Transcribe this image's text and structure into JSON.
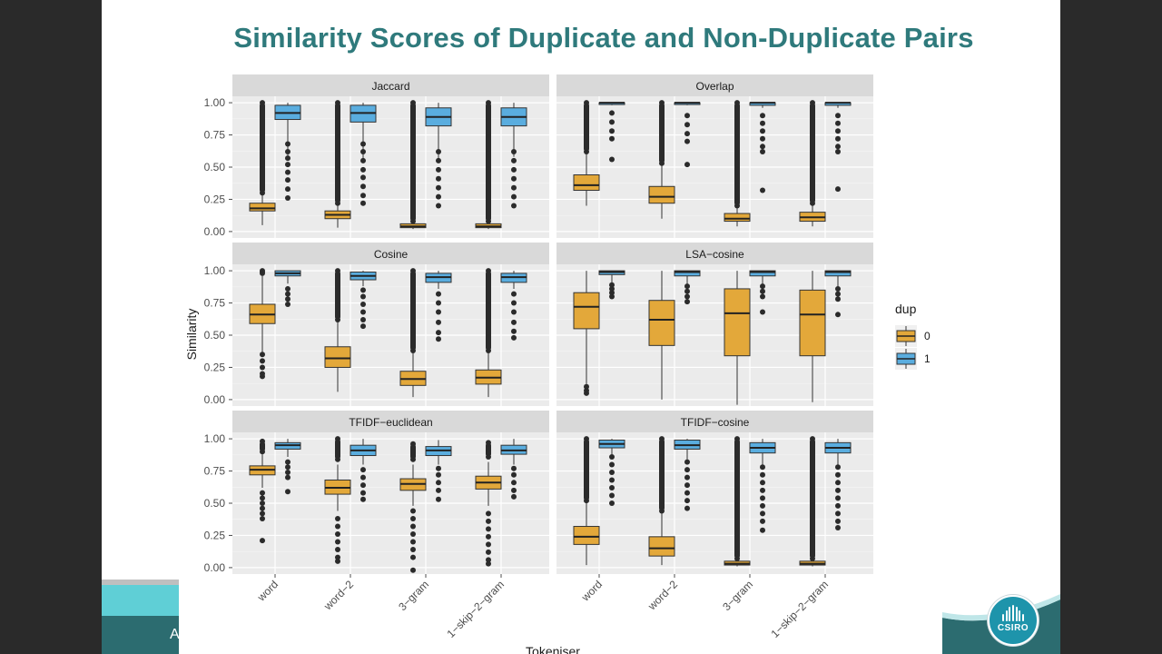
{
  "slide": {
    "title": "Similarity Scores of Duplicate and Non-Duplicate Pairs",
    "left_footer_text": "A",
    "logo_text": "CSIRO",
    "colors": {
      "title": "#2f7a7c",
      "dup0": "#e3a83a",
      "dup1": "#5aaddf",
      "panel": "#ebebeb",
      "strip": "#d9d9d9",
      "teal_light": "#5fcfd6",
      "teal_dark": "#2c6c70",
      "logo": "#1e94ab"
    },
    "icons": [
      "csiro-logo-icon"
    ]
  },
  "chart_data": {
    "type": "boxplot",
    "xlabel": "Tokeniser",
    "ylabel": "Similarity",
    "categories": [
      "word",
      "word−2",
      "3−gram",
      "1−skip−2−gram"
    ],
    "ylim": [
      -0.05,
      1.05
    ],
    "yticks": [
      "0.00",
      "0.25",
      "0.50",
      "0.75",
      "1.00"
    ],
    "legend": {
      "title": "dup",
      "entries": [
        "0",
        "1"
      ],
      "position": "right"
    },
    "grid": true,
    "panels": [
      {
        "name": "Jaccard",
        "boxes": [
          {
            "cat": "word",
            "dup": "0",
            "min": 0.05,
            "q1": 0.16,
            "median": 0.18,
            "q3": 0.22,
            "max": 0.3,
            "out_low": [],
            "out_high": [
              0.3,
              1.0
            ]
          },
          {
            "cat": "word",
            "dup": "1",
            "min": 0.58,
            "q1": 0.87,
            "median": 0.92,
            "q3": 0.98,
            "max": 1.0,
            "out_low": [
              0.26,
              0.33,
              0.4,
              0.46,
              0.52,
              0.57,
              0.62,
              0.68
            ],
            "out_high": []
          },
          {
            "cat": "word−2",
            "dup": "0",
            "min": 0.03,
            "q1": 0.1,
            "median": 0.13,
            "q3": 0.16,
            "max": 0.22,
            "out_low": [],
            "out_high": [
              0.22,
              1.0
            ]
          },
          {
            "cat": "word−2",
            "dup": "1",
            "min": 0.55,
            "q1": 0.85,
            "median": 0.92,
            "q3": 0.98,
            "max": 1.0,
            "out_low": [
              0.22,
              0.28,
              0.35,
              0.42,
              0.48,
              0.55,
              0.62,
              0.68
            ],
            "out_high": []
          },
          {
            "cat": "3−gram",
            "dup": "0",
            "min": 0.02,
            "q1": 0.03,
            "median": 0.04,
            "q3": 0.06,
            "max": 0.08,
            "out_low": [],
            "out_high": [
              0.08,
              1.0
            ]
          },
          {
            "cat": "3−gram",
            "dup": "1",
            "min": 0.55,
            "q1": 0.82,
            "median": 0.89,
            "q3": 0.96,
            "max": 1.0,
            "out_low": [
              0.2,
              0.27,
              0.34,
              0.41,
              0.48,
              0.55,
              0.62
            ],
            "out_high": []
          },
          {
            "cat": "1−skip−2−gram",
            "dup": "0",
            "min": 0.02,
            "q1": 0.03,
            "median": 0.04,
            "q3": 0.06,
            "max": 0.08,
            "out_low": [],
            "out_high": [
              0.08,
              1.0
            ]
          },
          {
            "cat": "1−skip−2−gram",
            "dup": "1",
            "min": 0.58,
            "q1": 0.82,
            "median": 0.89,
            "q3": 0.96,
            "max": 1.0,
            "out_low": [
              0.2,
              0.27,
              0.34,
              0.41,
              0.48,
              0.55,
              0.62
            ],
            "out_high": []
          }
        ]
      },
      {
        "name": "Overlap",
        "boxes": [
          {
            "cat": "word",
            "dup": "0",
            "min": 0.2,
            "q1": 0.32,
            "median": 0.36,
            "q3": 0.44,
            "max": 0.62,
            "out_low": [],
            "out_high": [
              0.62,
              1.0
            ]
          },
          {
            "cat": "word",
            "dup": "1",
            "min": 0.98,
            "q1": 0.99,
            "median": 1.0,
            "q3": 1.0,
            "max": 1.0,
            "out_low": [
              0.56,
              0.72,
              0.78,
              0.85,
              0.92
            ],
            "out_high": []
          },
          {
            "cat": "word−2",
            "dup": "0",
            "min": 0.1,
            "q1": 0.22,
            "median": 0.27,
            "q3": 0.35,
            "max": 0.53,
            "out_low": [],
            "out_high": [
              0.53,
              1.0
            ]
          },
          {
            "cat": "word−2",
            "dup": "1",
            "min": 0.98,
            "q1": 0.99,
            "median": 1.0,
            "q3": 1.0,
            "max": 1.0,
            "out_low": [
              0.52,
              0.7,
              0.76,
              0.83,
              0.9
            ],
            "out_high": []
          },
          {
            "cat": "3−gram",
            "dup": "0",
            "min": 0.04,
            "q1": 0.08,
            "median": 0.1,
            "q3": 0.14,
            "max": 0.2,
            "out_low": [],
            "out_high": [
              0.2,
              1.0
            ]
          },
          {
            "cat": "3−gram",
            "dup": "1",
            "min": 0.96,
            "q1": 0.98,
            "median": 1.0,
            "q3": 1.0,
            "max": 1.0,
            "out_low": [
              0.32,
              0.62,
              0.66,
              0.72,
              0.78,
              0.84,
              0.9
            ],
            "out_high": []
          },
          {
            "cat": "1−skip−2−gram",
            "dup": "0",
            "min": 0.04,
            "q1": 0.08,
            "median": 0.11,
            "q3": 0.15,
            "max": 0.22,
            "out_low": [],
            "out_high": [
              0.22,
              1.0
            ]
          },
          {
            "cat": "1−skip−2−gram",
            "dup": "1",
            "min": 0.96,
            "q1": 0.98,
            "median": 1.0,
            "q3": 1.0,
            "max": 1.0,
            "out_low": [
              0.33,
              0.62,
              0.66,
              0.72,
              0.78,
              0.84,
              0.9
            ],
            "out_high": []
          }
        ]
      },
      {
        "name": "Cosine",
        "boxes": [
          {
            "cat": "word",
            "dup": "0",
            "min": 0.36,
            "q1": 0.59,
            "median": 0.66,
            "q3": 0.74,
            "max": 0.96,
            "out_low": [
              0.18,
              0.2,
              0.25,
              0.3,
              0.35
            ],
            "out_high": [
              0.98,
              1.0
            ]
          },
          {
            "cat": "word",
            "dup": "1",
            "min": 0.9,
            "q1": 0.96,
            "median": 0.98,
            "q3": 1.0,
            "max": 1.0,
            "out_low": [
              0.74,
              0.78,
              0.82,
              0.86
            ],
            "out_high": []
          },
          {
            "cat": "word−2",
            "dup": "0",
            "min": 0.06,
            "q1": 0.25,
            "median": 0.32,
            "q3": 0.41,
            "max": 0.62,
            "out_low": [],
            "out_high": [
              0.62,
              1.0
            ]
          },
          {
            "cat": "word−2",
            "dup": "1",
            "min": 0.88,
            "q1": 0.93,
            "median": 0.96,
            "q3": 0.99,
            "max": 1.0,
            "out_low": [
              0.57,
              0.62,
              0.68,
              0.74,
              0.8,
              0.85
            ],
            "out_high": []
          },
          {
            "cat": "3−gram",
            "dup": "0",
            "min": 0.02,
            "q1": 0.11,
            "median": 0.16,
            "q3": 0.22,
            "max": 0.38,
            "out_low": [],
            "out_high": [
              0.38,
              1.0
            ]
          },
          {
            "cat": "3−gram",
            "dup": "1",
            "min": 0.86,
            "q1": 0.91,
            "median": 0.95,
            "q3": 0.98,
            "max": 1.0,
            "out_low": [
              0.47,
              0.52,
              0.6,
              0.68,
              0.75,
              0.82
            ],
            "out_high": []
          },
          {
            "cat": "1−skip−2−gram",
            "dup": "0",
            "min": 0.02,
            "q1": 0.12,
            "median": 0.17,
            "q3": 0.23,
            "max": 0.38,
            "out_low": [],
            "out_high": [
              0.38,
              1.0
            ]
          },
          {
            "cat": "1−skip−2−gram",
            "dup": "1",
            "min": 0.86,
            "q1": 0.91,
            "median": 0.95,
            "q3": 0.98,
            "max": 1.0,
            "out_low": [
              0.48,
              0.53,
              0.6,
              0.68,
              0.75,
              0.82
            ],
            "out_high": []
          }
        ]
      },
      {
        "name": "LSA−cosine",
        "boxes": [
          {
            "cat": "word",
            "dup": "0",
            "min": 0.12,
            "q1": 0.55,
            "median": 0.72,
            "q3": 0.83,
            "max": 1.0,
            "out_low": [
              0.05,
              0.07,
              0.1
            ],
            "out_high": []
          },
          {
            "cat": "word",
            "dup": "1",
            "min": 0.9,
            "q1": 0.97,
            "median": 0.99,
            "q3": 1.0,
            "max": 1.0,
            "out_low": [
              0.8,
              0.83,
              0.86,
              0.89
            ],
            "out_high": []
          },
          {
            "cat": "word−2",
            "dup": "0",
            "min": 0.0,
            "q1": 0.42,
            "median": 0.62,
            "q3": 0.77,
            "max": 1.0,
            "out_low": [],
            "out_high": []
          },
          {
            "cat": "word−2",
            "dup": "1",
            "min": 0.88,
            "q1": 0.96,
            "median": 0.99,
            "q3": 1.0,
            "max": 1.0,
            "out_low": [
              0.76,
              0.8,
              0.84,
              0.88
            ],
            "out_high": []
          },
          {
            "cat": "3−gram",
            "dup": "0",
            "min": -0.04,
            "q1": 0.34,
            "median": 0.67,
            "q3": 0.86,
            "max": 1.0,
            "out_low": [],
            "out_high": []
          },
          {
            "cat": "3−gram",
            "dup": "1",
            "min": 0.88,
            "q1": 0.96,
            "median": 0.99,
            "q3": 1.0,
            "max": 1.0,
            "out_low": [
              0.68,
              0.8,
              0.84,
              0.88
            ],
            "out_high": []
          },
          {
            "cat": "1−skip−2−gram",
            "dup": "0",
            "min": -0.02,
            "q1": 0.34,
            "median": 0.66,
            "q3": 0.85,
            "max": 1.0,
            "out_low": [],
            "out_high": []
          },
          {
            "cat": "1−skip−2−gram",
            "dup": "1",
            "min": 0.88,
            "q1": 0.96,
            "median": 0.99,
            "q3": 1.0,
            "max": 1.0,
            "out_low": [
              0.66,
              0.78,
              0.82,
              0.86
            ],
            "out_high": []
          }
        ]
      },
      {
        "name": "TFIDF−euclidean",
        "boxes": [
          {
            "cat": "word",
            "dup": "0",
            "min": 0.62,
            "q1": 0.72,
            "median": 0.76,
            "q3": 0.79,
            "max": 0.88,
            "out_low": [
              0.21,
              0.38,
              0.42,
              0.46,
              0.5,
              0.54,
              0.58
            ],
            "out_high": [
              0.9,
              0.94,
              0.98
            ]
          },
          {
            "cat": "word",
            "dup": "1",
            "min": 0.86,
            "q1": 0.92,
            "median": 0.95,
            "q3": 0.97,
            "max": 1.0,
            "out_low": [
              0.59,
              0.7,
              0.74,
              0.78,
              0.82
            ],
            "out_high": []
          },
          {
            "cat": "word−2",
            "dup": "0",
            "min": 0.44,
            "q1": 0.57,
            "median": 0.62,
            "q3": 0.68,
            "max": 0.8,
            "out_low": [
              0.05,
              0.08,
              0.14,
              0.2,
              0.26,
              0.32,
              0.38
            ],
            "out_high": [
              0.84,
              0.9,
              0.96,
              1.0
            ]
          },
          {
            "cat": "word−2",
            "dup": "1",
            "min": 0.8,
            "q1": 0.87,
            "median": 0.91,
            "q3": 0.95,
            "max": 1.0,
            "out_low": [
              0.53,
              0.58,
              0.64,
              0.7,
              0.76
            ],
            "out_high": []
          },
          {
            "cat": "3−gram",
            "dup": "0",
            "min": 0.48,
            "q1": 0.6,
            "median": 0.65,
            "q3": 0.69,
            "max": 0.8,
            "out_low": [
              -0.02,
              0.08,
              0.14,
              0.2,
              0.26,
              0.32,
              0.38,
              0.44
            ],
            "out_high": [
              0.84,
              0.9,
              0.96
            ]
          },
          {
            "cat": "3−gram",
            "dup": "1",
            "min": 0.8,
            "q1": 0.87,
            "median": 0.91,
            "q3": 0.94,
            "max": 0.99,
            "out_low": [
              0.53,
              0.6,
              0.66,
              0.72,
              0.77
            ],
            "out_high": []
          },
          {
            "cat": "1−skip−2−gram",
            "dup": "0",
            "min": 0.48,
            "q1": 0.61,
            "median": 0.66,
            "q3": 0.71,
            "max": 0.82,
            "out_low": [
              0.03,
              0.06,
              0.12,
              0.18,
              0.24,
              0.3,
              0.36,
              0.42
            ],
            "out_high": [
              0.86,
              0.92,
              0.97
            ]
          },
          {
            "cat": "1−skip−2−gram",
            "dup": "1",
            "min": 0.8,
            "q1": 0.88,
            "median": 0.91,
            "q3": 0.95,
            "max": 1.0,
            "out_low": [
              0.55,
              0.6,
              0.66,
              0.72,
              0.77
            ],
            "out_high": []
          }
        ]
      },
      {
        "name": "TFIDF−cosine",
        "boxes": [
          {
            "cat": "word",
            "dup": "0",
            "min": 0.02,
            "q1": 0.18,
            "median": 0.24,
            "q3": 0.32,
            "max": 0.52,
            "out_low": [],
            "out_high": [
              0.52,
              1.0
            ]
          },
          {
            "cat": "word",
            "dup": "1",
            "min": 0.88,
            "q1": 0.93,
            "median": 0.96,
            "q3": 0.99,
            "max": 1.0,
            "out_low": [
              0.5,
              0.56,
              0.62,
              0.68,
              0.74,
              0.8,
              0.86
            ],
            "out_high": []
          },
          {
            "cat": "word−2",
            "dup": "0",
            "min": 0.02,
            "q1": 0.09,
            "median": 0.15,
            "q3": 0.24,
            "max": 0.44,
            "out_low": [],
            "out_high": [
              0.44,
              1.0
            ]
          },
          {
            "cat": "word−2",
            "dup": "1",
            "min": 0.84,
            "q1": 0.92,
            "median": 0.95,
            "q3": 0.99,
            "max": 1.0,
            "out_low": [
              0.46,
              0.52,
              0.58,
              0.64,
              0.7,
              0.76,
              0.82
            ],
            "out_high": []
          },
          {
            "cat": "3−gram",
            "dup": "0",
            "min": 0.01,
            "q1": 0.02,
            "median": 0.03,
            "q3": 0.05,
            "max": 0.07,
            "out_low": [],
            "out_high": [
              0.07,
              1.0
            ]
          },
          {
            "cat": "3−gram",
            "dup": "1",
            "min": 0.8,
            "q1": 0.89,
            "median": 0.93,
            "q3": 0.97,
            "max": 1.0,
            "out_low": [
              0.29,
              0.36,
              0.42,
              0.48,
              0.54,
              0.6,
              0.66,
              0.72,
              0.78
            ],
            "out_high": []
          },
          {
            "cat": "1−skip−2−gram",
            "dup": "0",
            "min": 0.01,
            "q1": 0.02,
            "median": 0.03,
            "q3": 0.05,
            "max": 0.07,
            "out_low": [],
            "out_high": [
              0.07,
              1.0
            ]
          },
          {
            "cat": "1−skip−2−gram",
            "dup": "1",
            "min": 0.8,
            "q1": 0.89,
            "median": 0.93,
            "q3": 0.97,
            "max": 1.0,
            "out_low": [
              0.31,
              0.36,
              0.42,
              0.48,
              0.54,
              0.6,
              0.66,
              0.72,
              0.78
            ],
            "out_high": []
          }
        ]
      }
    ]
  }
}
